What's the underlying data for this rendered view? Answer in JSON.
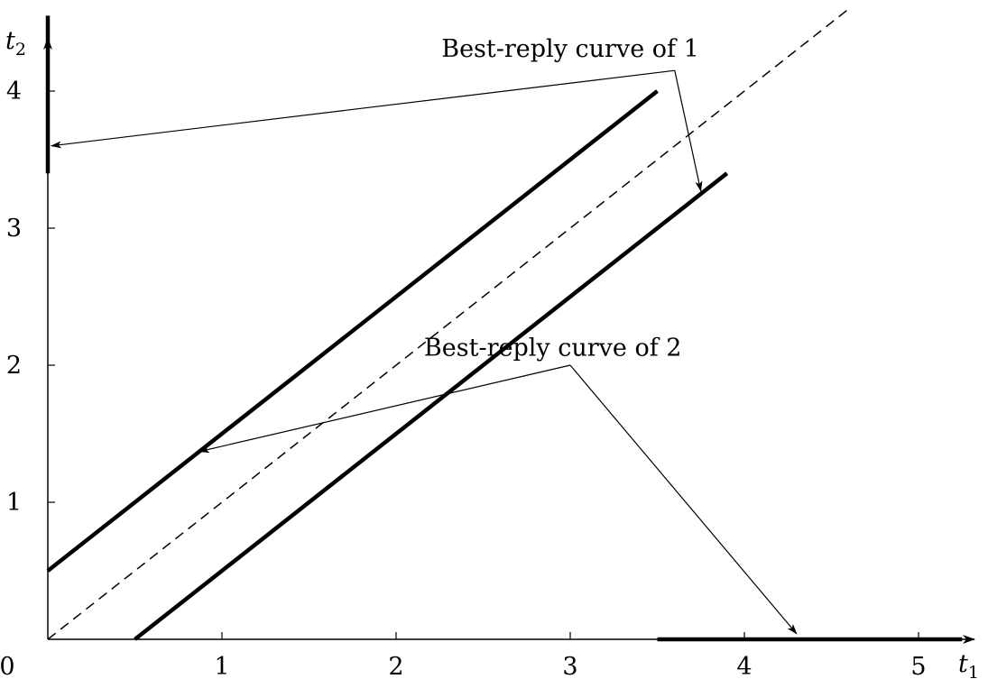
{
  "chart_data": {
    "type": "line",
    "title": "",
    "xlabel": {
      "main": "t",
      "sub": "1"
    },
    "ylabel": {
      "main": "t",
      "sub": "2"
    },
    "origin_label": "0",
    "xlim": [
      0,
      5.25
    ],
    "ylim": [
      0,
      4.55
    ],
    "x_ticks": [
      {
        "value": 1,
        "label": "1"
      },
      {
        "value": 2,
        "label": "2"
      },
      {
        "value": 3,
        "label": "3"
      },
      {
        "value": 4,
        "label": "4"
      },
      {
        "value": 5,
        "label": "5"
      }
    ],
    "y_ticks": [
      {
        "value": 1,
        "label": "1"
      },
      {
        "value": 2,
        "label": "2"
      },
      {
        "value": 3,
        "label": "3"
      },
      {
        "value": 4,
        "label": "4"
      }
    ],
    "grid": false,
    "series": [
      {
        "style": "thick",
        "points": [
          [
            0,
            0.5
          ],
          [
            3.5,
            4.0
          ]
        ]
      },
      {
        "style": "thick",
        "points": [
          [
            0.5,
            0
          ],
          [
            3.9,
            3.4
          ]
        ]
      },
      {
        "style": "dashed",
        "points": [
          [
            0,
            0
          ],
          [
            4.6,
            4.6
          ]
        ]
      },
      {
        "style": "thick",
        "points": [
          [
            0,
            3.4
          ],
          [
            0,
            4.55
          ]
        ]
      },
      {
        "style": "thick",
        "points": [
          [
            3.5,
            0
          ],
          [
            5.25,
            0
          ]
        ]
      }
    ],
    "annotations": [
      {
        "text": "Best-reply curve of 1",
        "text_at": [
          3.0,
          4.25
        ],
        "joint": [
          3.6,
          4.15
        ],
        "arrows_to": [
          [
            0.02,
            3.6
          ],
          [
            3.75,
            3.27
          ]
        ]
      },
      {
        "text": "Best-reply curve of 2",
        "text_at": [
          2.9,
          2.07
        ],
        "joint": [
          3.0,
          2.0
        ],
        "arrows_to": [
          [
            0.87,
            1.37
          ],
          [
            4.3,
            0.04
          ]
        ]
      }
    ]
  }
}
